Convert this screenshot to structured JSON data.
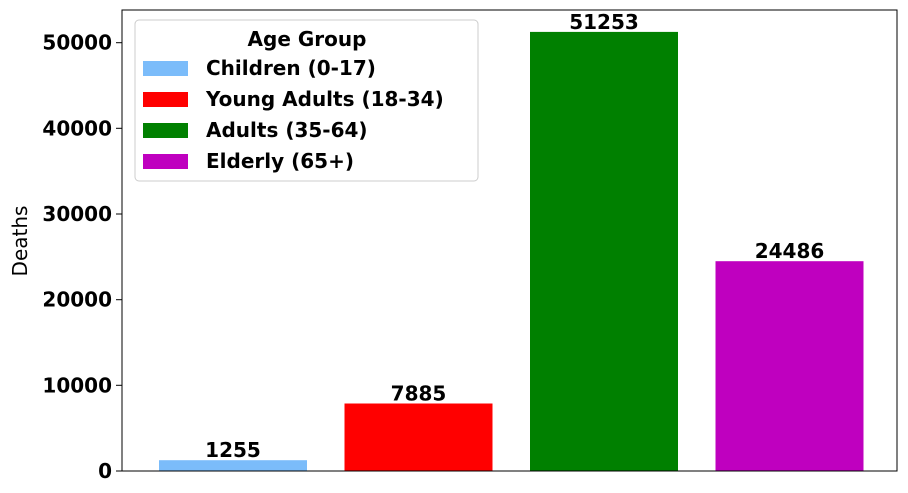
{
  "chart_data": {
    "type": "bar",
    "categories": [
      "Children (0-17)",
      "Young Adults (18-34)",
      "Adults (35-64)",
      "Elderly (65+)"
    ],
    "values": [
      1255,
      7885,
      51253,
      24486
    ],
    "colors": [
      "#7bbcfa",
      "#ff0000",
      "#008000",
      "#bf00bf"
    ],
    "data_labels": [
      "1255",
      "7885",
      "51253",
      "24486"
    ],
    "ylabel": "Deaths",
    "ylim": [
      0,
      53814
    ],
    "yticks": [
      0,
      10000,
      20000,
      30000,
      40000,
      50000
    ],
    "ytick_labels": [
      "0",
      "10000",
      "20000",
      "30000",
      "40000",
      "50000"
    ],
    "grid": false,
    "legend": {
      "title": "Age Group",
      "placement": "top-left",
      "entries": [
        "Children (0-17)",
        "Young Adults (18-34)",
        "Adults (35-64)",
        "Elderly (65+)"
      ]
    }
  }
}
